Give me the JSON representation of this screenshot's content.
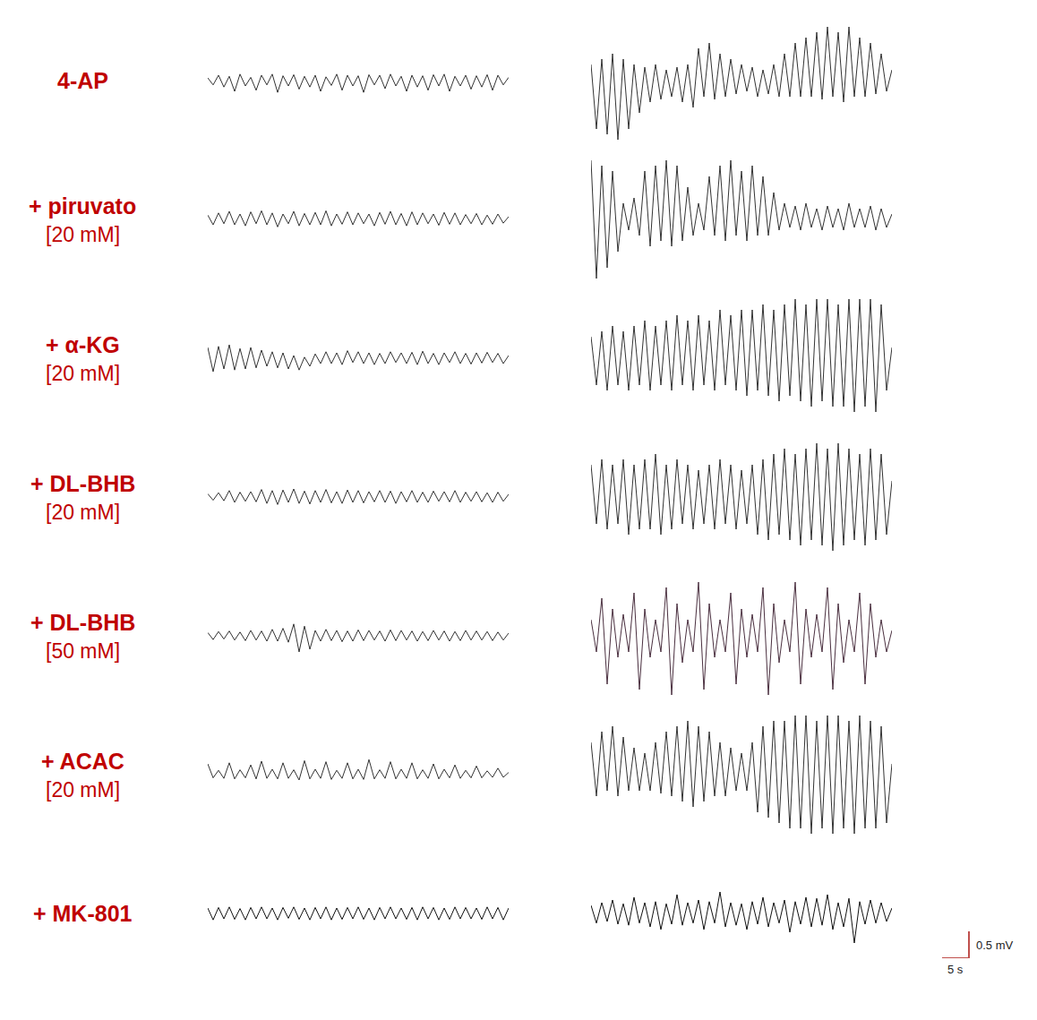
{
  "chart_data": {
    "type": "line",
    "grid": false,
    "tick_labels": false,
    "x": [
      0,
      1,
      2,
      3,
      4,
      5,
      6,
      7,
      8,
      9,
      10,
      11,
      12,
      13,
      14,
      15,
      16,
      17,
      18,
      19,
      20,
      21,
      22,
      23,
      24,
      25,
      26,
      27,
      28,
      29,
      30,
      31,
      32,
      33,
      34,
      35,
      36,
      37,
      38,
      39,
      40,
      41,
      42,
      43,
      44,
      45,
      46,
      47,
      48,
      49,
      50,
      51,
      52,
      53,
      54,
      55,
      56
    ],
    "xlim": [
      0,
      56
    ],
    "ylim": [
      -1.2,
      1.2
    ],
    "rows": [
      {
        "label": "4-AP",
        "color": "#c00000",
        "series": [
          {
            "color": "#333333",
            "values": [
              0.05,
              -0.08,
              0.1,
              -0.12,
              0.08,
              -0.2,
              0.12,
              -0.1,
              0.06,
              -0.18,
              0.1,
              -0.08,
              0.12,
              -0.22,
              0.09,
              -0.1,
              0.11,
              -0.16,
              0.08,
              -0.12,
              0.1,
              -0.2,
              0.07,
              -0.09,
              0.12,
              -0.18,
              0.1,
              -0.1,
              0.09,
              -0.22,
              0.11,
              -0.08,
              0.1,
              -0.15,
              0.12,
              -0.1,
              0.08,
              -0.2,
              0.1,
              -0.12,
              0.09,
              -0.18,
              0.11,
              -0.1,
              0.12,
              -0.2,
              0.08,
              -0.1,
              0.1,
              -0.16,
              0.09,
              -0.12,
              0.11,
              -0.18,
              0.1,
              -0.08,
              0.06
            ]
          },
          {
            "color": "#333333",
            "values": [
              0.3,
              -0.9,
              0.4,
              -1.0,
              0.5,
              -1.1,
              0.4,
              -0.9,
              0.3,
              -0.6,
              0.25,
              -0.4,
              0.3,
              -0.35,
              0.2,
              -0.3,
              0.25,
              -0.4,
              0.3,
              -0.5,
              0.6,
              -0.3,
              0.7,
              -0.35,
              0.5,
              -0.3,
              0.4,
              -0.25,
              0.3,
              -0.2,
              0.25,
              -0.3,
              0.2,
              -0.25,
              0.3,
              -0.3,
              0.5,
              -0.3,
              0.7,
              -0.3,
              0.8,
              -0.3,
              0.9,
              -0.35,
              1.0,
              -0.3,
              0.9,
              -0.4,
              1.0,
              -0.3,
              0.8,
              -0.3,
              0.7,
              -0.25,
              0.5,
              -0.2,
              0.2
            ]
          }
        ]
      },
      {
        "label": "+ piruvato",
        "concentration": "[20 mM]",
        "color": "#c00000",
        "series": [
          {
            "color": "#333333",
            "values": [
              0.08,
              -0.1,
              0.12,
              -0.08,
              0.15,
              -0.1,
              0.1,
              -0.12,
              0.14,
              -0.08,
              0.16,
              -0.1,
              0.12,
              -0.14,
              0.1,
              -0.08,
              0.15,
              -0.12,
              0.11,
              -0.1,
              0.13,
              -0.1,
              0.16,
              -0.12,
              0.1,
              -0.09,
              0.14,
              -0.1,
              0.12,
              -0.08,
              0.1,
              -0.12,
              0.13,
              -0.09,
              0.15,
              -0.1,
              0.11,
              -0.12,
              0.14,
              -0.1,
              0.12,
              -0.08,
              0.1,
              -0.11,
              0.13,
              -0.09,
              0.12,
              -0.1,
              0.09,
              -0.08,
              0.11,
              -0.1,
              0.08,
              -0.09,
              0.1,
              -0.07,
              0.05
            ]
          },
          {
            "color": "#333333",
            "values": [
              1.1,
              -1.1,
              1.0,
              -0.9,
              0.9,
              -0.6,
              0.3,
              -0.2,
              0.4,
              -0.3,
              0.9,
              -0.5,
              1.0,
              -0.4,
              1.1,
              -0.5,
              1.0,
              -0.4,
              0.6,
              -0.3,
              0.3,
              -0.2,
              0.8,
              -0.3,
              1.0,
              -0.4,
              1.1,
              -0.3,
              0.9,
              -0.4,
              1.0,
              -0.3,
              0.8,
              -0.3,
              0.5,
              -0.2,
              0.3,
              -0.15,
              0.25,
              -0.2,
              0.3,
              -0.15,
              0.2,
              -0.2,
              0.25,
              -0.15,
              0.2,
              -0.2,
              0.3,
              -0.15,
              0.2,
              -0.15,
              0.25,
              -0.2,
              0.2,
              -0.15,
              0.1
            ]
          }
        ]
      },
      {
        "label": "+ α-KG",
        "concentration": "[20 mM]",
        "color": "#c00000",
        "series": [
          {
            "color": "#333333",
            "values": [
              0.2,
              -0.25,
              0.22,
              -0.2,
              0.25,
              -0.22,
              0.18,
              -0.2,
              0.2,
              -0.18,
              0.15,
              -0.15,
              0.12,
              -0.18,
              0.1,
              -0.2,
              0.05,
              -0.22,
              0.02,
              -0.15,
              0.08,
              -0.1,
              0.12,
              -0.1,
              0.1,
              -0.12,
              0.14,
              -0.08,
              0.12,
              -0.1,
              0.1,
              -0.12,
              0.09,
              -0.1,
              0.12,
              -0.08,
              0.1,
              -0.1,
              0.11,
              -0.12,
              0.13,
              -0.1,
              0.09,
              -0.12,
              0.1,
              -0.08,
              0.12,
              -0.1,
              0.09,
              -0.11,
              0.1,
              -0.09,
              0.11,
              -0.08,
              0.09,
              -0.1,
              0.05
            ]
          },
          {
            "color": "#333333",
            "values": [
              0.4,
              -0.5,
              0.5,
              -0.6,
              0.6,
              -0.5,
              0.5,
              -0.6,
              0.6,
              -0.5,
              0.7,
              -0.6,
              0.6,
              -0.5,
              0.7,
              -0.6,
              0.8,
              -0.5,
              0.7,
              -0.6,
              0.8,
              -0.5,
              0.7,
              -0.6,
              0.9,
              -0.5,
              0.8,
              -0.6,
              0.9,
              -0.7,
              0.9,
              -0.6,
              1.0,
              -0.7,
              0.9,
              -0.8,
              1.0,
              -0.7,
              1.1,
              -0.8,
              1.0,
              -0.9,
              1.1,
              -0.8,
              1.1,
              -0.9,
              1.0,
              -0.9,
              1.1,
              -1.0,
              1.1,
              -0.9,
              1.1,
              -1.0,
              1.0,
              -0.6,
              0.2
            ]
          }
        ]
      },
      {
        "label": "+ DL-BHB",
        "concentration": "[20 mM]",
        "color": "#c00000",
        "series": [
          {
            "color": "#333333",
            "values": [
              0.06,
              -0.06,
              0.08,
              -0.07,
              0.12,
              -0.1,
              0.09,
              -0.08,
              0.1,
              -0.09,
              0.14,
              -0.12,
              0.12,
              -0.14,
              0.13,
              -0.1,
              0.15,
              -0.12,
              0.11,
              -0.13,
              0.12,
              -0.1,
              0.14,
              -0.11,
              0.1,
              -0.12,
              0.13,
              -0.1,
              0.12,
              -0.11,
              0.1,
              -0.09,
              0.12,
              -0.1,
              0.11,
              -0.12,
              0.1,
              -0.09,
              0.12,
              -0.1,
              0.09,
              -0.1,
              0.11,
              -0.08,
              0.1,
              -0.09,
              0.12,
              -0.1,
              0.09,
              -0.08,
              0.1,
              -0.09,
              0.08,
              -0.1,
              0.09,
              -0.08,
              0.05
            ]
          },
          {
            "color": "#333333",
            "values": [
              0.6,
              -0.5,
              0.7,
              -0.6,
              0.6,
              -0.5,
              0.7,
              -0.7,
              0.6,
              -0.6,
              0.7,
              -0.6,
              0.8,
              -0.7,
              0.6,
              -0.6,
              0.7,
              -0.5,
              0.6,
              -0.6,
              0.5,
              -0.5,
              0.6,
              -0.6,
              0.7,
              -0.5,
              0.6,
              -0.6,
              0.5,
              -0.5,
              0.6,
              -0.7,
              0.7,
              -0.8,
              0.8,
              -0.7,
              0.9,
              -0.8,
              0.8,
              -0.9,
              0.9,
              -0.8,
              1.0,
              -0.9,
              0.9,
              -1.0,
              1.0,
              -0.9,
              0.9,
              -0.8,
              0.8,
              -0.9,
              0.9,
              -0.8,
              0.8,
              -0.7,
              0.3
            ]
          }
        ]
      },
      {
        "label": "+ DL-BHB",
        "concentration": "[50 mM]",
        "color": "#c00000",
        "series": [
          {
            "color": "#333333",
            "values": [
              0.06,
              -0.07,
              0.08,
              -0.06,
              0.09,
              -0.08,
              0.07,
              -0.09,
              0.1,
              -0.08,
              0.09,
              -0.1,
              0.12,
              -0.1,
              0.14,
              -0.12,
              0.22,
              -0.3,
              0.18,
              -0.25,
              0.1,
              -0.1,
              0.12,
              -0.09,
              0.1,
              -0.11,
              0.09,
              -0.1,
              0.11,
              -0.09,
              0.1,
              -0.08,
              0.09,
              -0.1,
              0.11,
              -0.09,
              0.1,
              -0.08,
              0.09,
              -0.1,
              0.08,
              -0.09,
              0.1,
              -0.08,
              0.09,
              -0.1,
              0.08,
              -0.09,
              0.1,
              -0.08,
              0.09,
              -0.08,
              0.08,
              -0.09,
              0.07,
              -0.08,
              0.05
            ]
          },
          {
            "color": "#4a2f3f",
            "values": [
              0.3,
              -0.3,
              0.7,
              -0.9,
              0.5,
              -0.4,
              0.4,
              -0.3,
              0.8,
              -1.0,
              0.5,
              -0.4,
              0.3,
              -0.3,
              0.9,
              -1.1,
              0.6,
              -0.5,
              0.3,
              -0.3,
              1.0,
              -1.0,
              0.6,
              -0.4,
              0.3,
              -0.3,
              0.8,
              -0.9,
              0.5,
              -0.4,
              0.4,
              -0.3,
              0.9,
              -1.1,
              0.6,
              -0.5,
              0.3,
              -0.3,
              1.0,
              -0.9,
              0.5,
              -0.4,
              0.4,
              -0.3,
              0.9,
              -1.0,
              0.6,
              -0.5,
              0.3,
              -0.3,
              0.8,
              -0.9,
              0.6,
              -0.4,
              0.3,
              -0.3,
              0.1
            ]
          }
        ]
      },
      {
        "label": "+ ACAC",
        "concentration": "[20 mM]",
        "color": "#c00000",
        "series": [
          {
            "color": "#333333",
            "values": [
              0.2,
              -0.06,
              0.08,
              -0.07,
              0.22,
              -0.08,
              0.09,
              -0.06,
              0.18,
              -0.08,
              0.25,
              -0.07,
              0.1,
              -0.08,
              0.22,
              -0.07,
              0.09,
              -0.1,
              0.26,
              -0.08,
              0.1,
              -0.07,
              0.24,
              -0.09,
              0.08,
              -0.07,
              0.22,
              -0.08,
              0.1,
              -0.09,
              0.28,
              -0.08,
              0.09,
              -0.07,
              0.24,
              -0.08,
              0.1,
              -0.07,
              0.22,
              -0.08,
              0.09,
              -0.07,
              0.2,
              -0.08,
              0.1,
              -0.06,
              0.18,
              -0.07,
              0.08,
              -0.06,
              0.16,
              -0.06,
              0.07,
              -0.05,
              0.12,
              -0.05,
              0.04
            ]
          },
          {
            "color": "#333333",
            "values": [
              0.6,
              -0.4,
              0.8,
              -0.3,
              0.9,
              -0.4,
              0.7,
              -0.3,
              0.5,
              -0.3,
              0.4,
              -0.3,
              0.6,
              -0.35,
              0.8,
              -0.4,
              0.9,
              -0.5,
              1.0,
              -0.6,
              0.9,
              -0.5,
              0.8,
              -0.4,
              0.6,
              -0.4,
              0.5,
              -0.3,
              0.4,
              -0.3,
              0.6,
              -0.7,
              0.9,
              -0.8,
              1.0,
              -0.9,
              1.0,
              -1.0,
              1.1,
              -1.0,
              1.1,
              -1.1,
              1.0,
              -1.0,
              1.1,
              -1.1,
              1.1,
              -1.0,
              1.0,
              -1.1,
              1.1,
              -1.0,
              1.0,
              -1.0,
              0.9,
              -0.9,
              0.2
            ]
          }
        ]
      },
      {
        "label": "+ MK-801",
        "color": "#c00000",
        "series": [
          {
            "color": "#111111",
            "values": [
              0.1,
              -0.12,
              0.11,
              -0.1,
              0.12,
              -0.11,
              0.09,
              -0.12,
              0.11,
              -0.1,
              0.12,
              -0.1,
              0.1,
              -0.12,
              0.11,
              -0.09,
              0.12,
              -0.11,
              0.1,
              -0.12,
              0.11,
              -0.1,
              0.12,
              -0.12,
              0.1,
              -0.11,
              0.11,
              -0.1,
              0.12,
              -0.11,
              0.1,
              -0.12,
              0.11,
              -0.1,
              0.12,
              -0.1,
              0.1,
              -0.11,
              0.11,
              -0.12,
              0.12,
              -0.1,
              0.11,
              -0.12,
              0.1,
              -0.11,
              0.12,
              -0.1,
              0.11,
              -0.1,
              0.1,
              -0.11,
              0.12,
              -0.1,
              0.11,
              -0.12,
              0.1
            ]
          },
          {
            "color": "#111111",
            "values": [
              0.15,
              -0.18,
              0.2,
              -0.15,
              0.25,
              -0.2,
              0.18,
              -0.22,
              0.3,
              -0.18,
              0.2,
              -0.25,
              0.22,
              -0.3,
              0.18,
              -0.2,
              0.35,
              -0.22,
              0.2,
              -0.18,
              0.25,
              -0.3,
              0.22,
              -0.18,
              0.4,
              -0.25,
              0.2,
              -0.22,
              0.18,
              -0.3,
              0.22,
              -0.2,
              0.3,
              -0.25,
              0.2,
              -0.18,
              0.25,
              -0.35,
              0.22,
              -0.2,
              0.3,
              -0.25,
              0.28,
              -0.22,
              0.35,
              -0.3,
              0.2,
              -0.25,
              0.28,
              -0.55,
              0.22,
              -0.2,
              0.25,
              -0.18,
              0.2,
              -0.15,
              0.1
            ]
          }
        ]
      }
    ],
    "scale_bar": {
      "x": 5,
      "x_label": "5 s",
      "y": 0.5,
      "y_label": "0.5 mV",
      "color": "#c0504d"
    }
  }
}
